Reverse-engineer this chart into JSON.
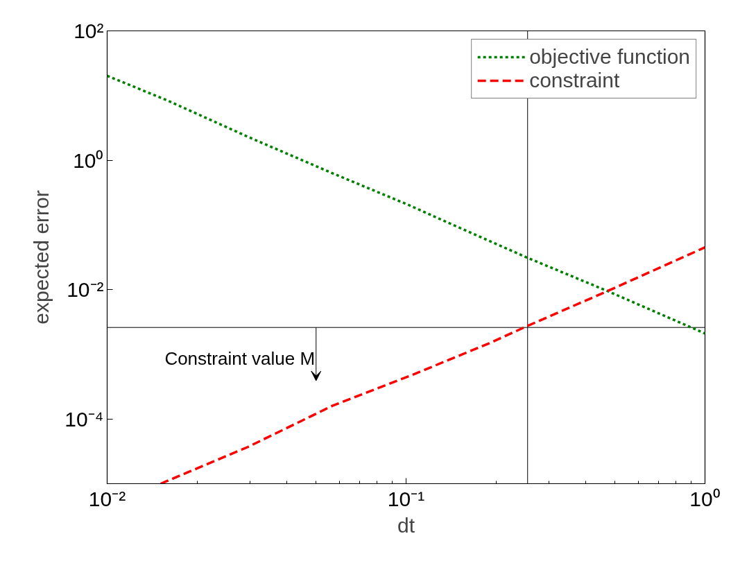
{
  "chart_data": {
    "type": "line",
    "xlabel": "dt",
    "ylabel": "expected error",
    "log": "xy",
    "xlim": [
      0.01,
      1
    ],
    "ylim": [
      1e-05,
      100
    ],
    "xticks": [
      {
        "value": 0.01,
        "label": "10⁻²"
      },
      {
        "value": 0.1,
        "label": "10⁻¹"
      },
      {
        "value": 1,
        "label": "10⁰"
      }
    ],
    "yticks": [
      {
        "value": 0.0001,
        "label": "10⁻⁴"
      },
      {
        "value": 0.01,
        "label": "10⁻²"
      },
      {
        "value": 1,
        "label": "10⁰"
      },
      {
        "value": 100,
        "label": "10²"
      }
    ],
    "grid": false,
    "legend": "top right",
    "series": [
      {
        "name": "objective function",
        "color": "#008000",
        "line_style": "dotted",
        "x": [
          0.01,
          0.0159,
          0.0296,
          0.0567,
          0.1016,
          0.132,
          0.255,
          0.472,
          1.0
        ],
        "values": [
          20.2,
          8.4,
          2.3,
          0.63,
          0.205,
          0.119,
          0.031,
          0.0095,
          0.0021
        ]
      },
      {
        "name": "constraint",
        "color": "#ff0000",
        "line_style": "dashed",
        "x": [
          0.0151,
          0.0296,
          0.0567,
          0.106,
          0.191,
          0.255,
          0.472,
          1.0
        ],
        "values": [
          1e-05,
          3.7e-05,
          0.00016,
          0.00049,
          0.0015,
          0.00275,
          0.0095,
          0.045
        ]
      }
    ],
    "ref_lines": [
      {
        "axis": "y",
        "value": 0.0026,
        "color": "#000000"
      },
      {
        "axis": "x",
        "value": 0.255,
        "color": "#000000"
      }
    ],
    "annotations": [
      {
        "text": "Constraint value M",
        "x": 0.05,
        "y": 0.0026
      }
    ]
  }
}
